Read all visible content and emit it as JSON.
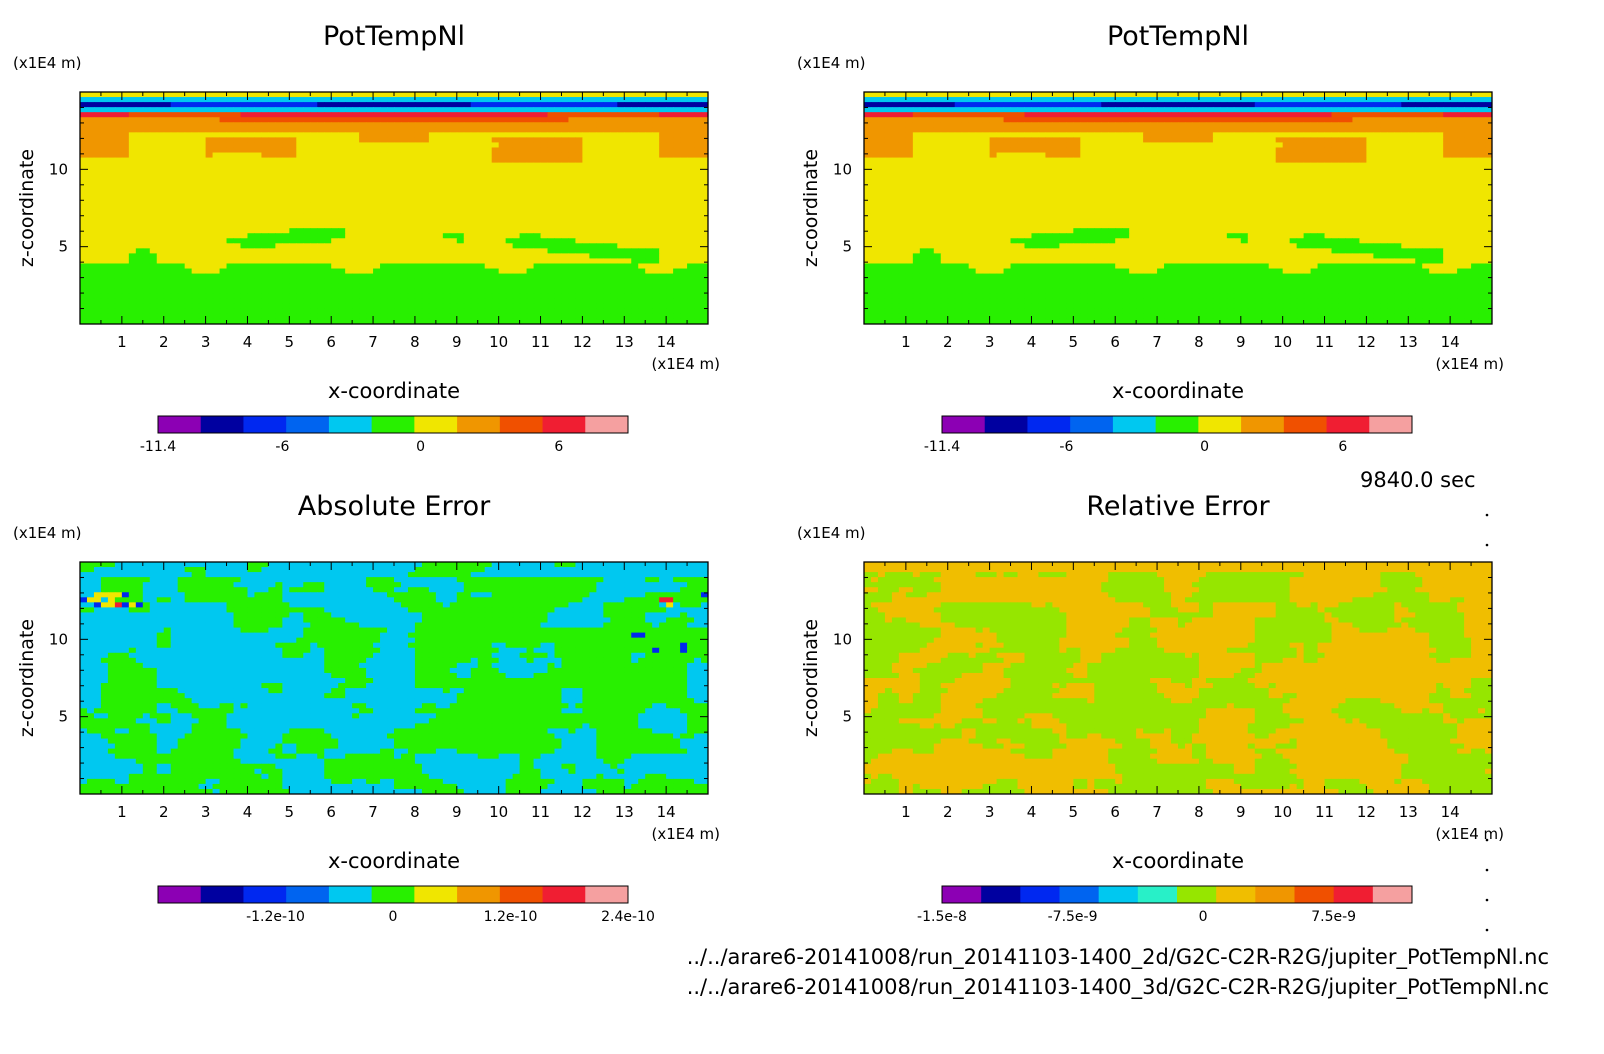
{
  "time_label": "9840.0 sec",
  "files": [
    "../../arare6-20141008/run_20141103-1400_2d/G2C-C2R-R2G/jupiter_PotTempNl.nc",
    "../../arare6-20141008/run_20141103-1400_3d/G2C-C2R-R2G/jupiter_PotTempNl.nc"
  ],
  "colors": {
    "palette13": [
      "#8c00b4",
      "#0000a0",
      "#0028f0",
      "#0064f0",
      "#00c8f0",
      "#28f000",
      "#f0e600",
      "#f09600",
      "#f05000",
      "#f01e32",
      "#f5a0a0"
    ],
    "rel_palette": [
      "#8c00b4",
      "#0000a0",
      "#0028f0",
      "#0064f0",
      "#00c8f0",
      "#28f0c8",
      "#96e600",
      "#f0be00",
      "#f09600",
      "#f05000",
      "#f01e32",
      "#f5a0a0"
    ]
  },
  "chart_data": [
    {
      "type": "heatmap",
      "title": "PotTempNl",
      "xlabel": "x-coordinate",
      "ylabel": "z-coordinate",
      "x_unit": "(x1E4 m)",
      "y_unit": "(x1E4 m)",
      "x_ticks": [
        "1",
        "2",
        "3",
        "4",
        "5",
        "6",
        "7",
        "8",
        "9",
        "10",
        "11",
        "12",
        "13",
        "14"
      ],
      "y_ticks": [
        "5",
        "10"
      ],
      "xlim": [
        0,
        15
      ],
      "ylim": [
        0,
        15
      ],
      "colorbar": {
        "tick_labels": [
          "-11.4",
          "-6",
          "0",
          "6"
        ],
        "range": [
          -11.4,
          9
        ]
      },
      "field": "pottemp"
    },
    {
      "type": "heatmap",
      "title": "PotTempNl",
      "xlabel": "x-coordinate",
      "ylabel": "z-coordinate",
      "x_unit": "(x1E4 m)",
      "y_unit": "(x1E4 m)",
      "x_ticks": [
        "1",
        "2",
        "3",
        "4",
        "5",
        "6",
        "7",
        "8",
        "9",
        "10",
        "11",
        "12",
        "13",
        "14"
      ],
      "y_ticks": [
        "5",
        "10"
      ],
      "xlim": [
        0,
        15
      ],
      "ylim": [
        0,
        15
      ],
      "colorbar": {
        "tick_labels": [
          "-11.4",
          "-6",
          "0",
          "6"
        ],
        "range": [
          -11.4,
          9
        ]
      },
      "field": "pottemp"
    },
    {
      "type": "heatmap",
      "title": "Absolute Error",
      "xlabel": "x-coordinate",
      "ylabel": "z-coordinate",
      "x_unit": "(x1E4 m)",
      "y_unit": "(x1E4 m)",
      "x_ticks": [
        "1",
        "2",
        "3",
        "4",
        "5",
        "6",
        "7",
        "8",
        "9",
        "10",
        "11",
        "12",
        "13",
        "14"
      ],
      "y_ticks": [
        "5",
        "10"
      ],
      "xlim": [
        0,
        15
      ],
      "ylim": [
        0,
        15
      ],
      "colorbar": {
        "tick_labels": [
          "-1.2e-10",
          "0",
          "1.2e-10",
          "2.4e-10"
        ],
        "range": [
          -2.4e-10,
          2.4e-10
        ]
      },
      "field": "abserr"
    },
    {
      "type": "heatmap",
      "title": "Relative Error",
      "xlabel": "x-coordinate",
      "ylabel": "z-coordinate",
      "x_unit": "(x1E4 m)",
      "y_unit": "(x1E4 m)",
      "x_ticks": [
        "1",
        "2",
        "3",
        "4",
        "5",
        "6",
        "7",
        "8",
        "9",
        "10",
        "11",
        "12",
        "13",
        "14"
      ],
      "y_ticks": [
        "5",
        "10"
      ],
      "xlim": [
        0,
        15
      ],
      "ylim": [
        0,
        15
      ],
      "colorbar": {
        "tick_labels": [
          "-1.5e-8",
          "-7.5e-9",
          "0",
          "7.5e-9"
        ],
        "range": [
          -1.5e-08,
          1.2e-08
        ]
      },
      "field": "relerr"
    }
  ]
}
